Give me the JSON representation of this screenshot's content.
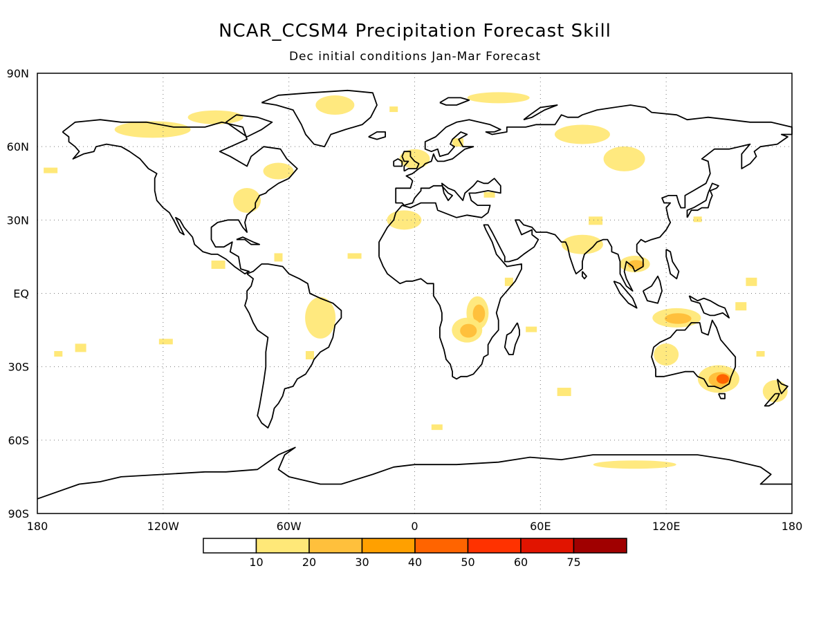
{
  "title": "NCAR_CCSM4 Precipitation Forecast Skill",
  "subtitle": "Dec initial conditions  Jan-Mar Forecast",
  "map": {
    "projection": "equirectangular",
    "lon_range": [
      -180,
      180
    ],
    "lat_range": [
      -90,
      90
    ],
    "grid_lines": "dotted"
  },
  "lat_labels": [
    "90N",
    "60N",
    "30N",
    "EQ",
    "30S",
    "60S",
    "90S"
  ],
  "lon_labels": [
    "180",
    "120W",
    "60W",
    "0",
    "60E",
    "120E",
    "180"
  ],
  "colorbar": {
    "colors": [
      "#ffffff",
      "#ffe878",
      "#ffc03c",
      "#ffa000",
      "#ff6400",
      "#ff3200",
      "#e11400",
      "#a00000"
    ],
    "labels": [
      "10",
      "20",
      "30",
      "40",
      "50",
      "60",
      "75"
    ]
  },
  "skill_regions": [
    {
      "name": "Alaska-N Canada",
      "lon": -125,
      "lat": 67,
      "level": 1
    },
    {
      "name": "Canadian Arctic",
      "lon": -95,
      "lat": 72,
      "level": 1
    },
    {
      "name": "Greenland",
      "lon": -38,
      "lat": 77,
      "level": 1
    },
    {
      "name": "E Canada",
      "lon": -65,
      "lat": 50,
      "level": 1
    },
    {
      "name": "E USA",
      "lon": -80,
      "lat": 38,
      "level": 1
    },
    {
      "name": "N Europe",
      "lon": 0,
      "lat": 55,
      "level": 1
    },
    {
      "name": "Barents Sea",
      "lon": 40,
      "lat": 80,
      "level": 1
    },
    {
      "name": "Siberia",
      "lon": 80,
      "lat": 65,
      "level": 1
    },
    {
      "name": "Central Asia",
      "lon": 100,
      "lat": 55,
      "level": 1
    },
    {
      "name": "Sahara",
      "lon": -5,
      "lat": 30,
      "level": 1
    },
    {
      "name": "South Asia",
      "lon": 80,
      "lat": 20,
      "level": 1
    },
    {
      "name": "Indochina",
      "lon": 105,
      "lat": 12,
      "level": 2
    },
    {
      "name": "East Africa",
      "lon": 30,
      "lat": -8,
      "level": 2
    },
    {
      "name": "Southern Africa",
      "lon": 25,
      "lat": -15,
      "level": 2
    },
    {
      "name": "Brazil",
      "lon": -45,
      "lat": -10,
      "level": 1
    },
    {
      "name": "Maritime Continent",
      "lon": 125,
      "lat": -10,
      "level": 2
    },
    {
      "name": "Western Australia",
      "lon": 120,
      "lat": -25,
      "level": 1
    },
    {
      "name": "SE Australia",
      "lon": 145,
      "lat": -35,
      "level": 3
    },
    {
      "name": "New Zealand",
      "lon": 172,
      "lat": -40,
      "level": 1
    },
    {
      "name": "Southern Ocean",
      "lon": 105,
      "lat": -70,
      "level": 1
    }
  ]
}
